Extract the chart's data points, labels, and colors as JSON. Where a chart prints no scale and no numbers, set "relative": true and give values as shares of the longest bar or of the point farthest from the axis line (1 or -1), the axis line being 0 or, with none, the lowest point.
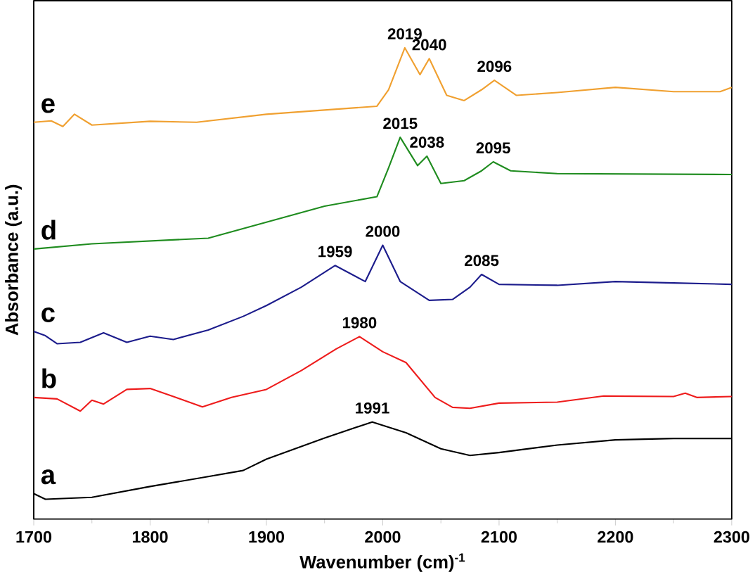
{
  "chart_data": {
    "type": "line",
    "relative": true,
    "xlabel": "Wavenumber (cm)$^{-1}$",
    "ylabel": "Absorbance (a.u.)",
    "xlim": [
      1700,
      2300
    ],
    "xticks": [
      1700,
      1800,
      1900,
      2000,
      2100,
      2200,
      2300
    ],
    "legend": false,
    "grid": false,
    "marker": "none",
    "line_style": "solid",
    "series": [
      {
        "name": "a",
        "color": "#000000",
        "x": [
          1700,
          1710,
          1750,
          1800,
          1850,
          1880,
          1900,
          1950,
          1991,
          2020,
          2050,
          2075,
          2100,
          2150,
          2200,
          2250,
          2300
        ],
        "values": [
          0.054,
          0.042,
          0.046,
          0.069,
          0.09,
          0.103,
          0.127,
          0.172,
          0.206,
          0.183,
          0.149,
          0.135,
          0.141,
          0.157,
          0.168,
          0.171,
          0.171
        ]
      },
      {
        "name": "b",
        "color": "#ee1c1c",
        "x": [
          1700,
          1720,
          1740,
          1750,
          1760,
          1780,
          1800,
          1820,
          1845,
          1870,
          1900,
          1930,
          1960,
          1980,
          2000,
          2020,
          2045,
          2060,
          2075,
          2100,
          2150,
          2190,
          2250,
          2260,
          2270,
          2300
        ],
        "values": [
          0.258,
          0.255,
          0.229,
          0.252,
          0.244,
          0.275,
          0.277,
          0.26,
          0.238,
          0.258,
          0.275,
          0.315,
          0.361,
          0.387,
          0.355,
          0.332,
          0.258,
          0.237,
          0.235,
          0.246,
          0.248,
          0.261,
          0.26,
          0.267,
          0.258,
          0.26
        ]
      },
      {
        "name": "c",
        "color": "#1c1c8c",
        "x": [
          1700,
          1710,
          1720,
          1740,
          1760,
          1780,
          1800,
          1820,
          1850,
          1880,
          1900,
          1930,
          1959,
          1985,
          2000,
          2015,
          2040,
          2060,
          2075,
          2085,
          2100,
          2150,
          2200,
          2250,
          2300
        ],
        "values": [
          0.398,
          0.389,
          0.372,
          0.375,
          0.395,
          0.375,
          0.388,
          0.381,
          0.401,
          0.43,
          0.453,
          0.492,
          0.538,
          0.504,
          0.581,
          0.504,
          0.464,
          0.466,
          0.492,
          0.519,
          0.498,
          0.496,
          0.504,
          0.501,
          0.498
        ]
      },
      {
        "name": "d",
        "color": "#1f8c1f",
        "x": [
          1700,
          1750,
          1850,
          1900,
          1950,
          1995,
          2005,
          2015,
          2030,
          2038,
          2050,
          2070,
          2085,
          2095,
          2110,
          2150,
          2300
        ],
        "values": [
          0.573,
          0.584,
          0.596,
          0.63,
          0.664,
          0.684,
          0.745,
          0.81,
          0.75,
          0.77,
          0.712,
          0.718,
          0.739,
          0.758,
          0.739,
          0.733,
          0.731
        ]
      },
      {
        "name": "e",
        "color": "#f0a030",
        "x": [
          1700,
          1715,
          1725,
          1735,
          1750,
          1800,
          1840,
          1900,
          1950,
          1995,
          2005,
          2019,
          2032,
          2040,
          2055,
          2070,
          2085,
          2096,
          2115,
          2150,
          2200,
          2250,
          2290,
          2300
        ],
        "values": [
          0.842,
          0.845,
          0.833,
          0.859,
          0.836,
          0.844,
          0.842,
          0.859,
          0.868,
          0.876,
          0.911,
          1,
          0.943,
          0.977,
          0.899,
          0.888,
          0.911,
          0.931,
          0.899,
          0.905,
          0.916,
          0.907,
          0.907,
          0.916
        ]
      }
    ],
    "annotations": [
      {
        "text": "1991",
        "x": 1991,
        "y": 0.206
      },
      {
        "text": "1980",
        "x": 1980,
        "y": 0.387
      },
      {
        "text": "1959",
        "x": 1959,
        "y": 0.538
      },
      {
        "text": "2000",
        "x": 2000,
        "y": 0.581
      },
      {
        "text": "2085",
        "x": 2085,
        "y": 0.519
      },
      {
        "text": "2015",
        "x": 2015,
        "y": 0.81
      },
      {
        "text": "2038",
        "x": 2038,
        "y": 0.77
      },
      {
        "text": "2095",
        "x": 2095,
        "y": 0.758
      },
      {
        "text": "2019",
        "x": 2019,
        "y": 1
      },
      {
        "text": "2040",
        "x": 2040,
        "y": 0.977
      },
      {
        "text": "2096",
        "x": 2096,
        "y": 0.931
      }
    ]
  }
}
